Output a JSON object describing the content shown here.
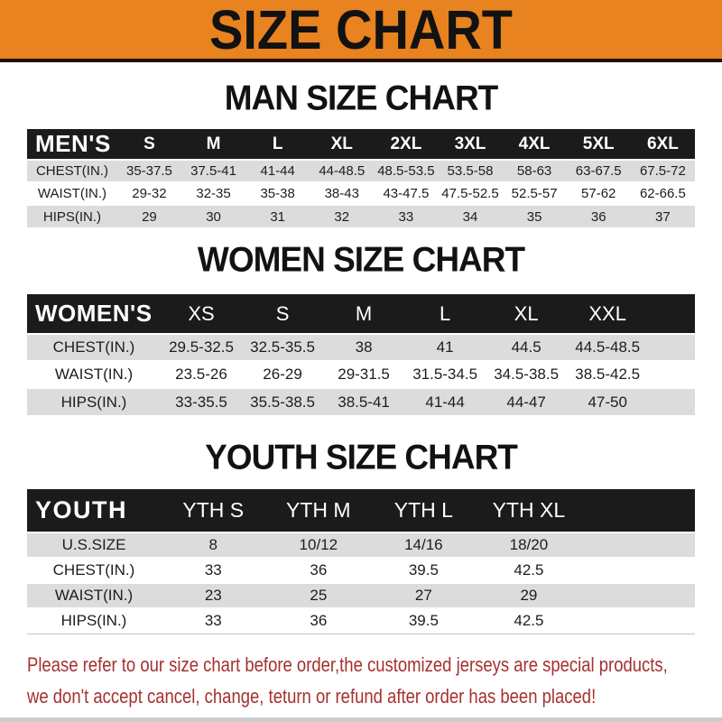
{
  "banner": {
    "title": "SIZE CHART"
  },
  "chart_data": [
    {
      "type": "table",
      "id": "men",
      "title": "MAN SIZE CHART",
      "header_label": "MEN'S",
      "columns": [
        "S",
        "M",
        "L",
        "XL",
        "2XL",
        "3XL",
        "4XL",
        "5XL",
        "6XL"
      ],
      "rows": [
        {
          "label": "CHEST(IN.)",
          "values": [
            "35-37.5",
            "37.5-41",
            "41-44",
            "44-48.5",
            "48.5-53.5",
            "53.5-58",
            "58-63",
            "63-67.5",
            "67.5-72"
          ]
        },
        {
          "label": "WAIST(IN.)",
          "values": [
            "29-32",
            "32-35",
            "35-38",
            "38-43",
            "43-47.5",
            "47.5-52.5",
            "52.5-57",
            "57-62",
            "62-66.5"
          ]
        },
        {
          "label": "HIPS(IN.)",
          "values": [
            "29",
            "30",
            "31",
            "32",
            "33",
            "34",
            "35",
            "36",
            "37"
          ]
        }
      ]
    },
    {
      "type": "table",
      "id": "women",
      "title": "WOMEN SIZE CHART",
      "header_label": "WOMEN'S",
      "columns": [
        "XS",
        "S",
        "M",
        "L",
        "XL",
        "XXL"
      ],
      "rows": [
        {
          "label": "CHEST(IN.)",
          "values": [
            "29.5-32.5",
            "32.5-35.5",
            "38",
            "41",
            "44.5",
            "44.5-48.5"
          ]
        },
        {
          "label": "WAIST(IN.)",
          "values": [
            "23.5-26",
            "26-29",
            "29-31.5",
            "31.5-34.5",
            "34.5-38.5",
            "38.5-42.5"
          ]
        },
        {
          "label": "HIPS(IN.)",
          "values": [
            "33-35.5",
            "35.5-38.5",
            "38.5-41",
            "41-44",
            "44-47",
            "47-50"
          ]
        }
      ]
    },
    {
      "type": "table",
      "id": "youth",
      "title": "YOUTH SIZE CHART",
      "header_label": "YOUTH",
      "columns": [
        "YTH S",
        "YTH M",
        "YTH L",
        "YTH XL"
      ],
      "rows": [
        {
          "label": "U.S.SIZE",
          "values": [
            "8",
            "10/12",
            "14/16",
            "18/20"
          ]
        },
        {
          "label": "CHEST(IN.)",
          "values": [
            "33",
            "36",
            "39.5",
            "42.5"
          ]
        },
        {
          "label": "WAIST(IN.)",
          "values": [
            "23",
            "25",
            "27",
            "29"
          ]
        },
        {
          "label": "HIPS(IN.)",
          "values": [
            "33",
            "36",
            "39.5",
            "42.5"
          ]
        }
      ]
    }
  ],
  "footer": {
    "line1": "Please refer to our size chart before order,the customized jerseys are special products,",
    "line2": "we don't accept cancel, change, teturn or refund after order has been placed!"
  },
  "colors": {
    "banner_bg": "#E8831F",
    "band_bg": "#1b1b1b",
    "row_alt_bg": "#dcdcdc",
    "notice_red": "#A63030"
  }
}
